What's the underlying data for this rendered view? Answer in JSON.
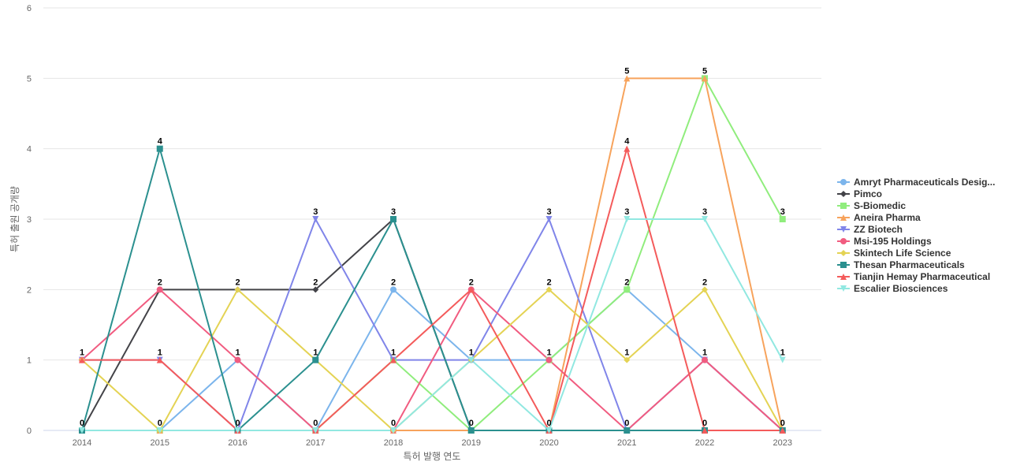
{
  "chart_data": {
    "type": "line",
    "title": "",
    "xlabel": "특허 발행 연도",
    "ylabel": "특허 출원 공개량",
    "ylim": [
      0,
      6
    ],
    "yticks": [
      0,
      1,
      2,
      3,
      4,
      5,
      6
    ],
    "grid": true,
    "legend_position": "right",
    "x": [
      "2014",
      "2015",
      "2016",
      "2017",
      "2018",
      "2019",
      "2020",
      "2021",
      "2022",
      "2023"
    ],
    "series": [
      {
        "name": "Amryt Pharmaceuticals Desig...",
        "color": "#7cb5ec",
        "marker": "circle",
        "values": [
          0,
          0,
          1,
          0,
          2,
          1,
          1,
          2,
          1,
          0
        ]
      },
      {
        "name": "Pimco",
        "color": "#434348",
        "marker": "diamond",
        "values": [
          0,
          2,
          2,
          2,
          3,
          0,
          0,
          0,
          0,
          0
        ]
      },
      {
        "name": "S-Biomedic",
        "color": "#90ed7d",
        "marker": "square",
        "values": [
          0,
          0,
          0,
          0,
          1,
          0,
          1,
          2,
          5,
          3
        ]
      },
      {
        "name": "Aneira Pharma",
        "color": "#f7a35c",
        "marker": "triangle",
        "values": [
          0,
          0,
          0,
          0,
          0,
          0,
          0,
          5,
          5,
          0
        ]
      },
      {
        "name": "ZZ Biotech",
        "color": "#8085e9",
        "marker": "triangle-down",
        "values": [
          1,
          1,
          0,
          3,
          1,
          1,
          3,
          0,
          1,
          0
        ]
      },
      {
        "name": "Msi-195 Holdings",
        "color": "#f15c80",
        "marker": "circle",
        "values": [
          1,
          2,
          1,
          0,
          0,
          2,
          1,
          0,
          1,
          0
        ]
      },
      {
        "name": "Skintech Life Science",
        "color": "#e4d354",
        "marker": "diamond",
        "values": [
          1,
          0,
          2,
          1,
          0,
          1,
          2,
          1,
          2,
          0
        ]
      },
      {
        "name": "Thesan Pharmaceuticals",
        "color": "#2b908f",
        "marker": "square",
        "values": [
          0,
          4,
          0,
          1,
          3,
          0,
          0,
          0,
          0,
          0
        ]
      },
      {
        "name": "Tianjin Hemay Pharmaceutical",
        "color": "#f45b5b",
        "marker": "triangle",
        "values": [
          1,
          1,
          0,
          0,
          1,
          2,
          0,
          4,
          0,
          0
        ]
      },
      {
        "name": "Escalier Biosciences",
        "color": "#91e8e1",
        "marker": "triangle-down",
        "values": [
          0,
          0,
          0,
          0,
          0,
          1,
          0,
          3,
          3,
          1
        ]
      }
    ],
    "data_labels": {
      "values": [
        1,
        4,
        2,
        3,
        3,
        2,
        3,
        5,
        5,
        3
      ]
    }
  }
}
